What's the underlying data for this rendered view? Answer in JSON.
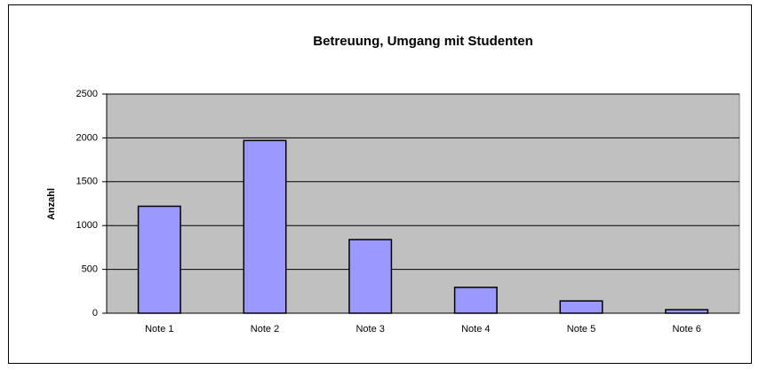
{
  "chart_data": {
    "type": "bar",
    "title": "Betreuung, Umgang mit Studenten",
    "y_label": "Anzahl",
    "categories": [
      "Note 1",
      "Note 2",
      "Note 3",
      "Note 4",
      "Note 5",
      "Note 6"
    ],
    "values": [
      1220,
      1970,
      840,
      295,
      140,
      40
    ],
    "color": "#9999ff",
    "ylim": [
      0,
      2500
    ],
    "yticks": [
      0,
      500,
      1000,
      1500,
      2000,
      2500
    ],
    "grid": true
  }
}
